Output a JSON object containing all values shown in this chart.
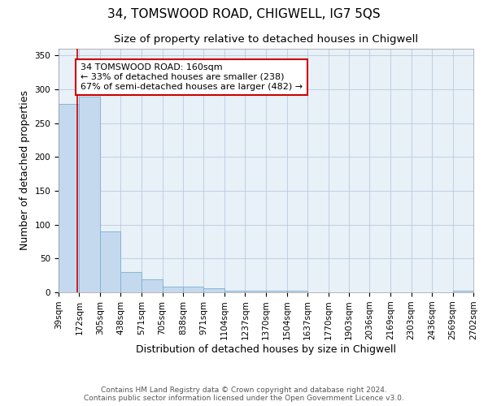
{
  "title": "34, TOMSWOOD ROAD, CHIGWELL, IG7 5QS",
  "subtitle": "Size of property relative to detached houses in Chigwell",
  "xlabel": "Distribution of detached houses by size in Chigwell",
  "ylabel": "Number of detached properties",
  "bin_edges": [
    39,
    172,
    305,
    438,
    571,
    705,
    838,
    971,
    1104,
    1237,
    1370,
    1504,
    1637,
    1770,
    1903,
    2036,
    2169,
    2303,
    2436,
    2569,
    2702
  ],
  "bar_heights": [
    278,
    289,
    90,
    30,
    19,
    8,
    8,
    6,
    3,
    3,
    2,
    2,
    0,
    0,
    0,
    0,
    0,
    0,
    0,
    3
  ],
  "bar_color": "#c5d9ee",
  "bar_edgecolor": "#7aafd4",
  "red_line_x": 160,
  "annotation_title": "34 TOMSWOOD ROAD: 160sqm",
  "annotation_line1": "← 33% of detached houses are smaller (238)",
  "annotation_line2": "67% of semi-detached houses are larger (482) →",
  "ylim": [
    0,
    360
  ],
  "yticks": [
    0,
    50,
    100,
    150,
    200,
    250,
    300,
    350
  ],
  "tick_labels": [
    "39sqm",
    "172sqm",
    "305sqm",
    "438sqm",
    "571sqm",
    "705sqm",
    "838sqm",
    "971sqm",
    "1104sqm",
    "1237sqm",
    "1370sqm",
    "1504sqm",
    "1637sqm",
    "1770sqm",
    "1903sqm",
    "2036sqm",
    "2169sqm",
    "2303sqm",
    "2436sqm",
    "2569sqm",
    "2702sqm"
  ],
  "footer_line1": "Contains HM Land Registry data © Crown copyright and database right 2024.",
  "footer_line2": "Contains public sector information licensed under the Open Government Licence v3.0.",
  "background_color": "#e8f0f8",
  "grid_color": "#b0c4d8",
  "title_fontsize": 11,
  "subtitle_fontsize": 9.5,
  "axis_label_fontsize": 9,
  "tick_fontsize": 7.5,
  "annotation_box_facecolor": "#ffffff",
  "annotation_box_edgecolor": "#cc0000",
  "red_line_color": "#cc0000",
  "footer_fontsize": 6.5,
  "footer_color": "#555555"
}
